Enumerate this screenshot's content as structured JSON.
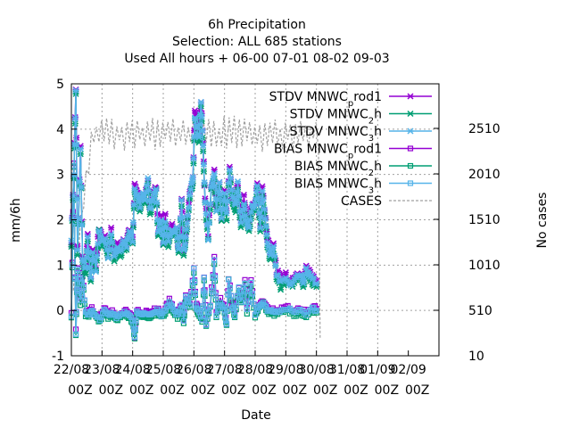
{
  "chart_data": {
    "type": "line",
    "title_lines": [
      "6h Precipitation",
      "Selection: ALL     685 stations",
      "Used  All hours  + 06-00 07-01 08-02 09-03"
    ],
    "xlabel": "Date",
    "ylabel": "mm/6h",
    "y2label": "No cases",
    "ylim": [
      -1,
      5
    ],
    "y2lim": [
      10,
      3000
    ],
    "yticks": [
      "-1",
      "0",
      "1",
      "2",
      "3",
      "4",
      "5"
    ],
    "y2ticks": [
      "10",
      "510",
      "1010",
      "1510",
      "2010",
      "2510"
    ],
    "xlim": [
      0,
      18
    ],
    "xticks": [
      {
        "day": "22/08",
        "hour": "00Z"
      },
      {
        "day": "23/08",
        "hour": "00Z"
      },
      {
        "day": "24/08",
        "hour": "00Z"
      },
      {
        "day": "25/08",
        "hour": "00Z"
      },
      {
        "day": "26/08",
        "hour": "00Z"
      },
      {
        "day": "27/08",
        "hour": "00Z"
      },
      {
        "day": "28/08",
        "hour": "00Z"
      },
      {
        "day": "29/08",
        "hour": "00Z"
      },
      {
        "day": "30/08",
        "hour": "00Z"
      },
      {
        "day": "31/08",
        "hour": "00Z"
      },
      {
        "day": "01/09",
        "hour": "00Z"
      },
      {
        "day": "02/09",
        "hour": "00Z"
      }
    ],
    "grid": true,
    "legend_position": "top-right",
    "series": [
      {
        "name": "STDV MNWC_prod1",
        "label_main": "STDV MNWC",
        "label_sub": "p",
        "label_rest": "rod1",
        "color": "#9400d3",
        "marker": "star",
        "kind": "stdv",
        "offset": 0.05,
        "jitter": 0.1
      },
      {
        "name": "STDV MNWC_2h",
        "label_main": "STDV MNWC",
        "label_sub": "2",
        "label_rest": "h",
        "color": "#009e73",
        "marker": "star",
        "kind": "stdv",
        "offset": -0.08,
        "jitter": 0.07
      },
      {
        "name": "STDV MNWC_3h",
        "label_main": "STDV MNWC",
        "label_sub": "3",
        "label_rest": "h",
        "color": "#56b4e9",
        "marker": "star",
        "kind": "stdv",
        "offset": 0.0,
        "jitter": 0.05
      },
      {
        "name": "BIAS MNWC_prod1",
        "label_main": "BIAS MNWC",
        "label_sub": "p",
        "label_rest": "rod1",
        "color": "#9400d3",
        "marker": "square",
        "kind": "bias",
        "offset": 0.04,
        "jitter": 0.05
      },
      {
        "name": "BIAS MNWC_2h",
        "label_main": "BIAS MNWC",
        "label_sub": "2",
        "label_rest": "h",
        "color": "#009e73",
        "marker": "square",
        "kind": "bias",
        "offset": -0.05,
        "jitter": 0.04
      },
      {
        "name": "BIAS MNWC_3h",
        "label_main": "BIAS MNWC",
        "label_sub": "3",
        "label_rest": "h",
        "color": "#56b4e9",
        "marker": "square",
        "kind": "bias",
        "offset": 0.0,
        "jitter": 0.03
      },
      {
        "name": "CASES",
        "label_main": "CASES",
        "label_sub": "",
        "label_rest": "",
        "color": "#a0a0a0",
        "marker": "none",
        "kind": "cases",
        "offset": 0,
        "jitter": 0
      }
    ],
    "stdv_base": [
      [
        0.0,
        1.5
      ],
      [
        0.12,
        3.0
      ],
      [
        0.22,
        4.9
      ],
      [
        0.3,
        1.3
      ],
      [
        0.45,
        3.6
      ],
      [
        0.55,
        1.1
      ],
      [
        0.7,
        0.9
      ],
      [
        0.8,
        1.6
      ],
      [
        0.95,
        0.7
      ],
      [
        1.05,
        1.3
      ],
      [
        1.2,
        0.9
      ],
      [
        1.35,
        1.8
      ],
      [
        1.5,
        1.5
      ],
      [
        1.65,
        1.6
      ],
      [
        1.8,
        1.2
      ],
      [
        1.95,
        1.7
      ],
      [
        2.1,
        1.2
      ],
      [
        2.25,
        1.4
      ],
      [
        2.4,
        1.3
      ],
      [
        2.55,
        1.5
      ],
      [
        2.7,
        1.4
      ],
      [
        2.85,
        1.8
      ],
      [
        3.0,
        1.5
      ],
      [
        3.1,
        2.7
      ],
      [
        3.25,
        2.5
      ],
      [
        3.35,
        2.3
      ],
      [
        3.5,
        2.6
      ],
      [
        3.6,
        2.4
      ],
      [
        3.75,
        2.9
      ],
      [
        3.85,
        2.2
      ],
      [
        4.0,
        2.5
      ],
      [
        4.15,
        2.7
      ],
      [
        4.25,
        1.7
      ],
      [
        4.4,
        2.0
      ],
      [
        4.5,
        1.5
      ],
      [
        4.6,
        2.0
      ],
      [
        4.75,
        1.5
      ],
      [
        4.9,
        1.8
      ],
      [
        5.0,
        1.7
      ],
      [
        5.15,
        1.8
      ],
      [
        5.25,
        1.3
      ],
      [
        5.4,
        2.4
      ],
      [
        5.5,
        1.3
      ],
      [
        5.6,
        1.6
      ],
      [
        5.7,
        2.1
      ],
      [
        5.85,
        2.7
      ],
      [
        5.95,
        2.9
      ],
      [
        6.05,
        4.3
      ],
      [
        6.15,
        4.0
      ],
      [
        6.25,
        3.8
      ],
      [
        6.35,
        4.6
      ],
      [
        6.45,
        3.6
      ],
      [
        6.55,
        2.4
      ],
      [
        6.7,
        1.6
      ],
      [
        6.85,
        2.7
      ],
      [
        7.0,
        3.0
      ],
      [
        7.1,
        2.2
      ],
      [
        7.25,
        2.8
      ],
      [
        7.35,
        2.0
      ],
      [
        7.5,
        2.6
      ],
      [
        7.6,
        2.1
      ],
      [
        7.75,
        3.1
      ],
      [
        7.9,
        2.5
      ],
      [
        8.05,
        2.3
      ],
      [
        8.15,
        2.8
      ],
      [
        8.3,
        1.9
      ],
      [
        8.45,
        2.4
      ],
      [
        8.55,
        2.0
      ],
      [
        8.7,
        1.8
      ],
      [
        8.85,
        2.3
      ],
      [
        9.0,
        2.3
      ],
      [
        9.1,
        2.8
      ],
      [
        9.25,
        1.8
      ],
      [
        9.35,
        2.6
      ],
      [
        9.5,
        2.0
      ],
      [
        9.6,
        1.5
      ],
      [
        9.75,
        1.2
      ],
      [
        9.9,
        1.4
      ],
      [
        10.05,
        0.8
      ],
      [
        10.25,
        0.6
      ],
      [
        10.5,
        0.7
      ],
      [
        10.75,
        0.6
      ],
      [
        11.0,
        0.75
      ],
      [
        11.2,
        0.8
      ],
      [
        11.35,
        0.6
      ],
      [
        11.5,
        0.9
      ],
      [
        11.65,
        0.8
      ],
      [
        11.8,
        0.7
      ],
      [
        12.0,
        0.6
      ]
    ],
    "bias_base": [
      [
        0.0,
        -0.1
      ],
      [
        0.12,
        3.2
      ],
      [
        0.22,
        -0.5
      ],
      [
        0.3,
        0.9
      ],
      [
        0.45,
        0.2
      ],
      [
        0.55,
        0.8
      ],
      [
        0.7,
        -0.05
      ],
      [
        0.85,
        -0.1
      ],
      [
        1.0,
        0.0
      ],
      [
        1.2,
        -0.1
      ],
      [
        1.4,
        -0.2
      ],
      [
        1.6,
        0.0
      ],
      [
        1.8,
        -0.1
      ],
      [
        2.0,
        -0.05
      ],
      [
        2.2,
        -0.15
      ],
      [
        2.4,
        -0.1
      ],
      [
        2.6,
        -0.05
      ],
      [
        2.8,
        -0.1
      ],
      [
        3.0,
        -0.2
      ],
      [
        3.1,
        -0.6
      ],
      [
        3.2,
        0.0
      ],
      [
        3.4,
        -0.1
      ],
      [
        3.6,
        -0.05
      ],
      [
        3.8,
        -0.1
      ],
      [
        4.0,
        -0.05
      ],
      [
        4.2,
        0.0
      ],
      [
        4.4,
        -0.1
      ],
      [
        4.6,
        0.0
      ],
      [
        4.8,
        0.2
      ],
      [
        5.0,
        0.0
      ],
      [
        5.2,
        -0.1
      ],
      [
        5.4,
        0.1
      ],
      [
        5.5,
        -0.2
      ],
      [
        5.6,
        0.3
      ],
      [
        5.8,
        0.1
      ],
      [
        6.0,
        0.9
      ],
      [
        6.1,
        0.1
      ],
      [
        6.2,
        0.0
      ],
      [
        6.4,
        -0.2
      ],
      [
        6.5,
        0.7
      ],
      [
        6.6,
        -0.3
      ],
      [
        6.8,
        0.1
      ],
      [
        7.0,
        1.1
      ],
      [
        7.1,
        -0.1
      ],
      [
        7.3,
        0.2
      ],
      [
        7.5,
        0.0
      ],
      [
        7.6,
        -0.3
      ],
      [
        7.7,
        0.7
      ],
      [
        7.9,
        0.1
      ],
      [
        8.0,
        -0.1
      ],
      [
        8.2,
        0.5
      ],
      [
        8.3,
        0.2
      ],
      [
        8.5,
        0.6
      ],
      [
        8.6,
        0.0
      ],
      [
        8.8,
        0.6
      ],
      [
        9.0,
        -0.1
      ],
      [
        9.2,
        0.1
      ],
      [
        9.4,
        0.2
      ],
      [
        9.6,
        0.0
      ],
      [
        9.8,
        0.0
      ],
      [
        10.0,
        -0.05
      ],
      [
        10.3,
        0.0
      ],
      [
        10.6,
        0.05
      ],
      [
        10.9,
        -0.05
      ],
      [
        11.2,
        0.0
      ],
      [
        11.5,
        -0.1
      ],
      [
        11.8,
        0.05
      ],
      [
        12.0,
        0.0
      ]
    ],
    "cases_x_end": 12.1,
    "cases_low": 2250,
    "cases_high": 2650
  }
}
